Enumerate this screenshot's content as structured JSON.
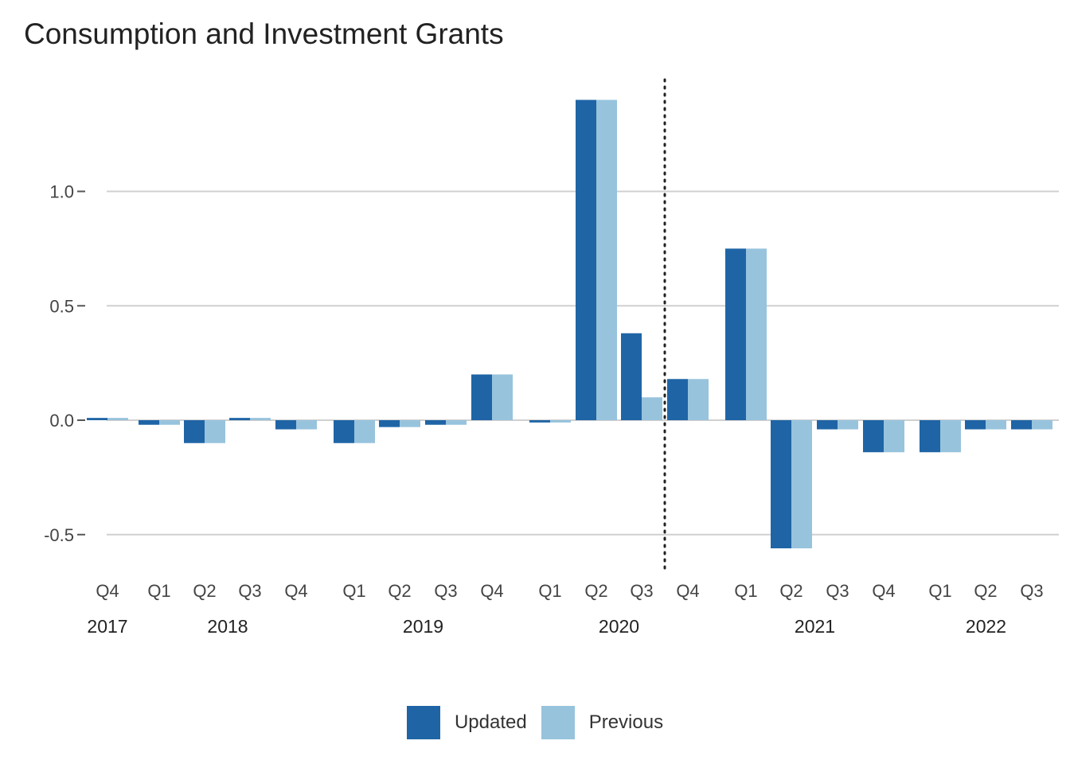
{
  "chart_data": {
    "type": "bar",
    "title": "Consumption and Investment Grants",
    "xlabel": "",
    "ylabel": "",
    "ylim": [
      -0.61,
      1.5
    ],
    "yticks": [
      -0.5,
      0.0,
      0.5,
      1.0
    ],
    "ytick_labels": [
      "-0.5",
      "0.0",
      "0.5",
      "1.0"
    ],
    "grid": true,
    "legend_position": "bottom",
    "categories": [
      "Q4",
      "Q1",
      "Q2",
      "Q3",
      "Q4",
      "Q1",
      "Q2",
      "Q3",
      "Q4",
      "Q1",
      "Q2",
      "Q3",
      "Q4",
      "Q1",
      "Q2",
      "Q3",
      "Q4",
      "Q1",
      "Q2",
      "Q3"
    ],
    "years": [
      {
        "label": "2017",
        "from": 0,
        "to": 0
      },
      {
        "label": "2018",
        "from": 1,
        "to": 4
      },
      {
        "label": "2019",
        "from": 5,
        "to": 8
      },
      {
        "label": "2020",
        "from": 9,
        "to": 12
      },
      {
        "label": "2021",
        "from": 13,
        "to": 16
      },
      {
        "label": "2022",
        "from": 17,
        "to": 19
      }
    ],
    "series": [
      {
        "name": "Updated",
        "color": "#1f65a6",
        "values": [
          0.01,
          -0.02,
          -0.1,
          0.01,
          -0.04,
          -0.1,
          -0.03,
          -0.02,
          0.2,
          -0.01,
          1.4,
          0.38,
          0.18,
          0.75,
          -0.56,
          -0.04,
          -0.14,
          -0.14,
          -0.04,
          -0.04
        ]
      },
      {
        "name": "Previous",
        "color": "#97c3dd",
        "values": [
          0.01,
          -0.02,
          -0.1,
          0.01,
          -0.04,
          -0.1,
          -0.03,
          -0.02,
          0.2,
          -0.01,
          1.4,
          0.1,
          0.18,
          0.75,
          -0.56,
          -0.04,
          -0.14,
          -0.14,
          -0.04,
          -0.04
        ]
      }
    ],
    "annotations": [
      {
        "type": "vertical-dotted-line",
        "between_categories": [
          11,
          12
        ]
      }
    ]
  }
}
